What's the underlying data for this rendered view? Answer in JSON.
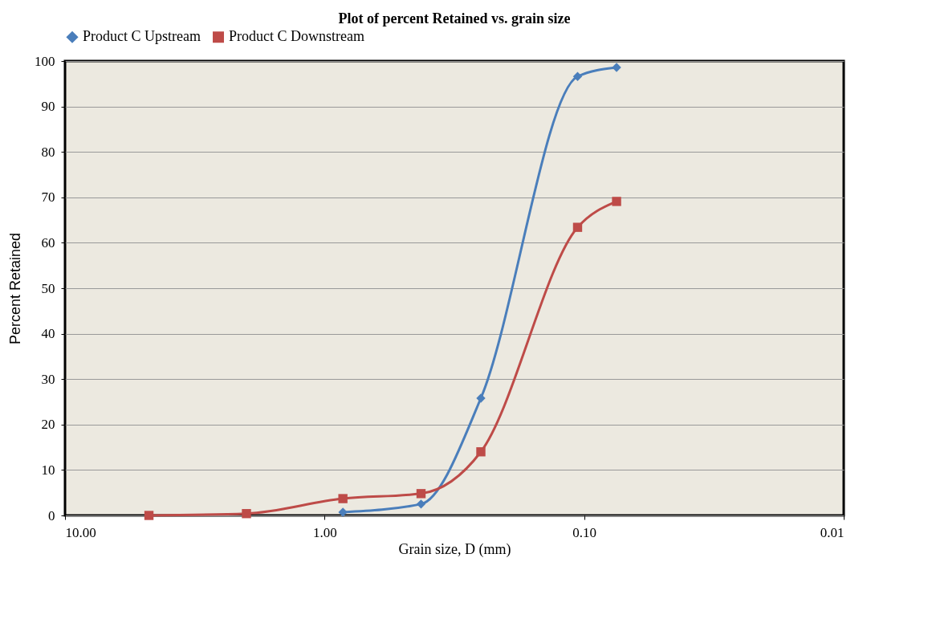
{
  "chart_data": {
    "type": "line",
    "title": "Plot of percent Retained vs. grain size",
    "xlabel": "Grain size, D (mm)",
    "ylabel": "Percent Retained",
    "x": [
      4.75,
      2.0,
      0.85,
      0.425,
      0.25,
      0.106,
      0.075
    ],
    "series": [
      {
        "name": "Product C Upstream",
        "color": "#4a7ebb",
        "marker": "diamond",
        "values": [
          null,
          null,
          0.7,
          2.5,
          25.8,
          96.6,
          98.6
        ]
      },
      {
        "name": "Product C Downstream",
        "color": "#be4b48",
        "marker": "square",
        "values": [
          0,
          0.4,
          3.7,
          4.8,
          14,
          63.4,
          69.1
        ]
      }
    ],
    "log": "x",
    "xlim": [
      10,
      0.01
    ],
    "xticks": [
      {
        "value": 10,
        "label": "10.00"
      },
      {
        "value": 1,
        "label": "1.00"
      },
      {
        "value": 0.1,
        "label": "0.10"
      },
      {
        "value": 0.01,
        "label": "0.01"
      }
    ],
    "ylim": [
      0,
      100
    ],
    "yticks": [
      0,
      10,
      20,
      30,
      40,
      50,
      60,
      70,
      80,
      90,
      100
    ],
    "grid": "y",
    "legend": "top"
  }
}
